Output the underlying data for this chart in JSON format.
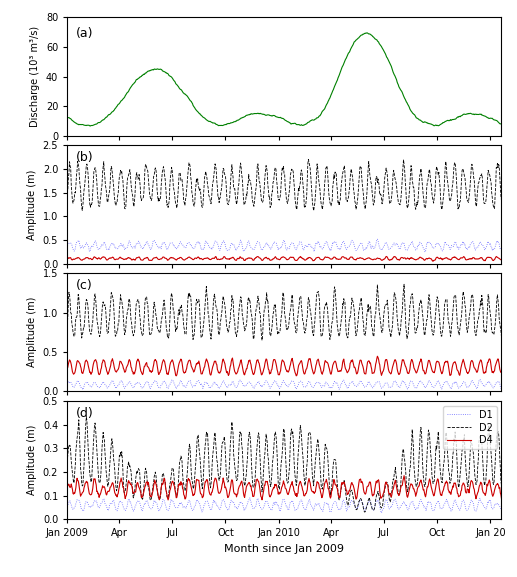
{
  "title_a": "(a)",
  "title_b": "(b)",
  "title_c": "(c)",
  "title_d": "(d)",
  "ylabel_a": "Discharge (10³ m³/s)",
  "ylabel_bcd": "Amplitude (m)",
  "xlabel": "Month since Jan 2009",
  "ylim_a": [
    0,
    80
  ],
  "ylim_b": [
    0,
    2.5
  ],
  "ylim_c": [
    0,
    1.5
  ],
  "ylim_d": [
    0,
    0.5
  ],
  "yticks_a": [
    0,
    20,
    40,
    60,
    80
  ],
  "yticks_b": [
    0,
    0.5,
    1.0,
    1.5,
    2.0,
    2.5
  ],
  "yticks_c": [
    0,
    0.5,
    1.0,
    1.5
  ],
  "yticks_d": [
    0,
    0.1,
    0.2,
    0.3,
    0.4,
    0.5
  ],
  "color_discharge": "#008000",
  "color_D1": "#6666ff",
  "color_D2": "#000000",
  "color_D4": "#cc0000",
  "legend_labels": [
    "D1",
    "D2",
    "D4"
  ],
  "n_days": 750
}
